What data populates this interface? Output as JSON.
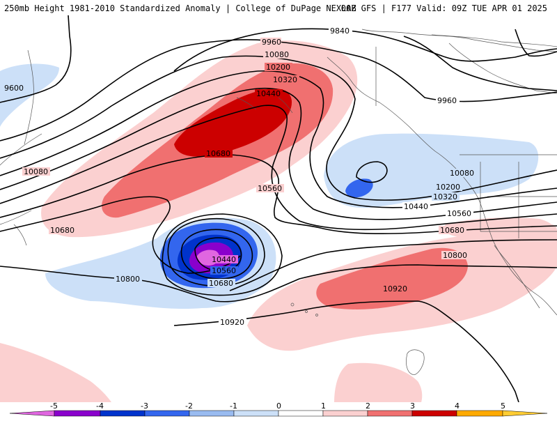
{
  "header": {
    "left_title": "250mb Height 1981-2010 Standardized Anomaly | College of DuPage NEXLAB",
    "right_title": "00Z GFS | F177 Valid: 09Z TUE APR 01 2025"
  },
  "contour_labels": {
    "c9600": "9600",
    "c9840": "9840",
    "c9960_a": "9960",
    "c9960_b": "9960",
    "c10080_a": "10080",
    "c10080_b": "10080",
    "c10080_c": "10080",
    "c10200_a": "10200",
    "c10200_b": "10200",
    "c10320_a": "10320",
    "c10320_b": "10320",
    "c10440_a": "10440",
    "c10440_b": "10440",
    "c10440_c": "10440",
    "c10560_a": "10560",
    "c10560_b": "10560",
    "c10560_c": "10560",
    "c10680_a": "10680",
    "c10680_b": "10680",
    "c10680_c": "10680",
    "c10680_d": "10680",
    "c10800_a": "10800",
    "c10800_b": "10800",
    "c10920_a": "10920",
    "c10920_b": "10920"
  },
  "colorbar": {
    "ticks": [
      "-5",
      "-4",
      "-3",
      "-2",
      "-1",
      "0",
      "1",
      "2",
      "3",
      "4",
      "5"
    ],
    "colors": [
      "#e066e0",
      "#8a00cc",
      "#0033cc",
      "#3366ee",
      "#99bbf0",
      "#cce0f8",
      "#ffffff",
      "#fbd0d0",
      "#f07070",
      "#cc0000",
      "#ffaa00",
      "#ffcc33"
    ]
  },
  "colors": {
    "anom_pos_1": "#fbd0d0",
    "anom_pos_2": "#f07070",
    "anom_pos_3": "#cc0000",
    "anom_neg_1": "#cce0f8",
    "anom_neg_2": "#3366ee",
    "anom_neg_3": "#0033cc",
    "anom_neg_4": "#8a00cc",
    "anom_neg_5": "#e066e0"
  }
}
